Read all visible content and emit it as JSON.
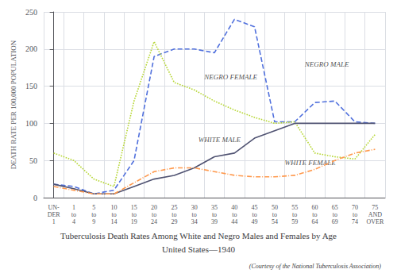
{
  "chart_data": {
    "type": "line",
    "title": "Tuberculosis Death Rates Among White and Negro Males and Females by Age",
    "subtitle": "United States—1940",
    "caption": "(Courtesy of the National Tuberculosis Association)",
    "ylabel": "DEATH RATE PER 100,000 POPULATION",
    "categories": [
      "UN-\nDER\n1",
      "1\nto\n4",
      "5\nto\n9",
      "10\nto\n14",
      "15\nto\n19",
      "20\nto\n24",
      "25\nto\n29",
      "30\nto\n34",
      "35\nto\n39",
      "40\nto\n44",
      "45\nto\n49",
      "50\nto\n54",
      "55\nto\n59",
      "60\nto\n64",
      "65\nto\n69",
      "70\nto\n74",
      "75\nAND\nOVER"
    ],
    "series": [
      {
        "name": "NEGRO MALE",
        "line_style": "dashed",
        "values": [
          18,
          15,
          5,
          10,
          50,
          190,
          200,
          200,
          195,
          240,
          230,
          102,
          102,
          128,
          130,
          102,
          100
        ]
      },
      {
        "name": "NEGRO FEMALE",
        "line_style": "dotted",
        "values": [
          60,
          50,
          25,
          15,
          130,
          210,
          155,
          145,
          130,
          118,
          108,
          100,
          102,
          60,
          55,
          52,
          85
        ]
      },
      {
        "name": "WHITE MALE",
        "line_style": "solid",
        "values": [
          18,
          12,
          5,
          5,
          15,
          25,
          30,
          40,
          55,
          60,
          80,
          90,
          100,
          100,
          100,
          100,
          100
        ]
      },
      {
        "name": "WHITE FEMALE",
        "line_style": "dashdot",
        "values": [
          15,
          10,
          5,
          5,
          20,
          35,
          40,
          40,
          35,
          30,
          28,
          28,
          30,
          38,
          50,
          60,
          65
        ]
      }
    ],
    "annotations": [
      {
        "text": "NEGRO MALE",
        "x": 12.5,
        "y": 175
      },
      {
        "text": "NEGRO FEMALE",
        "x": 7.5,
        "y": 158
      },
      {
        "text": "WHITE MALE",
        "x": 7.2,
        "y": 73
      },
      {
        "text": "WHITE FEMALE",
        "x": 11.5,
        "y": 42
      }
    ],
    "ylim": [
      0,
      250
    ],
    "yticks": [
      0,
      50,
      100,
      150,
      200,
      250
    ],
    "grid": true
  }
}
